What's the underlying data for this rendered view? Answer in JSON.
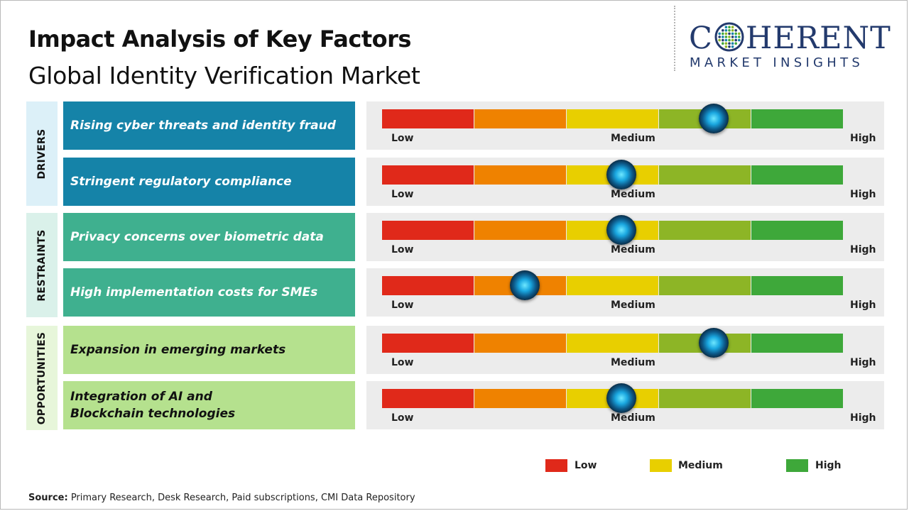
{
  "header": {
    "title": "Impact Analysis of Key Factors",
    "subtitle": "Global Identity Verification Market"
  },
  "logo": {
    "text_before": "C",
    "text_after": "HERENT",
    "tagline": "MARKET INSIGHTS",
    "color": "#233a6d"
  },
  "categories": [
    {
      "label": "DRIVERS",
      "color": "#dcf0f8"
    },
    {
      "label": "RESTRAINTS",
      "color": "#daf1ea"
    },
    {
      "label": "OPPORTUNITIES",
      "color": "#e7f6da"
    }
  ],
  "scale_labels": {
    "low": "Low",
    "medium": "Medium",
    "high": "High"
  },
  "segment_colors": [
    "#e0291a",
    "#ef8200",
    "#e8cf00",
    "#8db526",
    "#3ea83a"
  ],
  "chart_data": {
    "type": "impact-gauge",
    "title": "Impact Analysis of Key Factors",
    "subtitle": "Global Identity Verification Market",
    "scale": [
      "Low",
      "Medium",
      "High"
    ],
    "factors": [
      {
        "category": "DRIVERS",
        "label": "Rising cyber threats and identity fraud",
        "impact": 0.72,
        "color": "#1583a8"
      },
      {
        "category": "DRIVERS",
        "label": "Stringent regulatory compliance",
        "impact": 0.52,
        "color": "#1583a8"
      },
      {
        "category": "RESTRAINTS",
        "label": "Privacy concerns over biometric data",
        "impact": 0.52,
        "color": "#3fb08f"
      },
      {
        "category": "RESTRAINTS",
        "label": "High implementation costs for SMEs",
        "impact": 0.31,
        "color": "#3fb08f"
      },
      {
        "category": "OPPORTUNITIES",
        "label": "Expansion in emerging markets",
        "impact": 0.72,
        "color": "#b5e18e"
      },
      {
        "category": "OPPORTUNITIES",
        "label": "Integration of AI and Blockchain technologies",
        "impact": 0.52,
        "color": "#b5e18e"
      }
    ],
    "legend": [
      {
        "label": "Low",
        "color": "#e0291a"
      },
      {
        "label": "Medium",
        "color": "#e8cf00"
      },
      {
        "label": "High",
        "color": "#3ea83a"
      }
    ]
  },
  "footer": {
    "source_label": "Source:",
    "source_text": " Primary Research, Desk Research, Paid subscriptions, CMI Data Repository"
  }
}
